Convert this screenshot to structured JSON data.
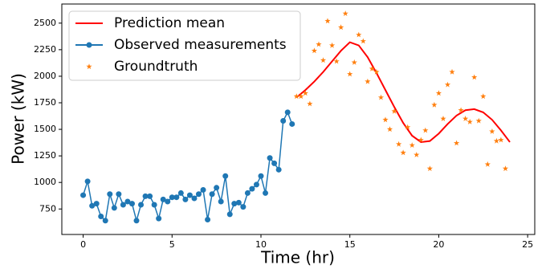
{
  "chart_data": {
    "type": "line",
    "xlabel": "Time (hr)",
    "ylabel": "Power (kW)",
    "xlim": [
      -1.2,
      25.4
    ],
    "ylim": [
      510,
      2680
    ],
    "xticks": [
      0,
      5,
      10,
      15,
      20,
      25
    ],
    "yticks": [
      750,
      1000,
      1250,
      1500,
      1750,
      2000,
      2250,
      2500
    ],
    "legend": "upper left",
    "series": [
      {
        "name": "Prediction mean",
        "color": "#ff0000",
        "style": "line",
        "x": [
          12,
          12.5,
          13,
          13.5,
          14,
          14.5,
          15,
          15.5,
          16,
          16.5,
          17,
          17.5,
          18,
          18.5,
          19,
          19.5,
          20,
          20.5,
          21,
          21.5,
          22,
          22.5,
          23,
          23.5,
          24
        ],
        "values": [
          1800,
          1870,
          1950,
          2040,
          2140,
          2240,
          2320,
          2290,
          2180,
          2030,
          1870,
          1710,
          1560,
          1440,
          1380,
          1390,
          1460,
          1550,
          1630,
          1680,
          1690,
          1660,
          1590,
          1490,
          1380
        ]
      },
      {
        "name": "Observed measurements",
        "color": "#1f77b4",
        "style": "line-marker",
        "x": [
          0,
          0.25,
          0.5,
          0.75,
          1,
          1.25,
          1.5,
          1.75,
          2,
          2.25,
          2.5,
          2.75,
          3,
          3.25,
          3.5,
          3.75,
          4,
          4.25,
          4.5,
          4.75,
          5,
          5.25,
          5.5,
          5.75,
          6,
          6.25,
          6.5,
          6.75,
          7,
          7.25,
          7.5,
          7.75,
          8,
          8.25,
          8.5,
          8.75,
          9,
          9.25,
          9.5,
          9.75,
          10,
          10.25,
          10.5,
          10.75,
          11,
          11.25,
          11.5,
          11.75
        ],
        "values": [
          880,
          1010,
          780,
          800,
          680,
          640,
          890,
          760,
          890,
          790,
          820,
          800,
          640,
          790,
          870,
          870,
          790,
          660,
          840,
          820,
          860,
          860,
          900,
          840,
          880,
          850,
          890,
          930,
          650,
          890,
          950,
          820,
          1060,
          700,
          800,
          810,
          770,
          900,
          940,
          980,
          1060,
          900,
          1230,
          1180,
          1120,
          1580,
          1660,
          1550
        ]
      },
      {
        "name": "Groundtruth",
        "color": "#ff7f0e",
        "style": "star",
        "x": [
          12,
          12.25,
          12.5,
          12.75,
          13,
          13.25,
          13.5,
          13.75,
          14,
          14.25,
          14.5,
          14.75,
          15,
          15.25,
          15.5,
          15.75,
          16,
          16.25,
          16.5,
          16.75,
          17,
          17.25,
          17.5,
          17.75,
          18,
          18.25,
          18.5,
          18.75,
          19,
          19.25,
          19.5,
          19.75,
          20,
          20.25,
          20.5,
          20.75,
          21,
          21.25,
          21.5,
          21.75,
          22,
          22.25,
          22.5,
          22.75,
          23,
          23.25,
          23.5,
          23.75
        ],
        "values": [
          1810,
          1810,
          1840,
          1740,
          2240,
          2300,
          2150,
          2520,
          2290,
          2140,
          2460,
          2590,
          2020,
          2130,
          2390,
          2330,
          1950,
          2070,
          2040,
          1800,
          1590,
          1500,
          1670,
          1360,
          1280,
          1520,
          1350,
          1260,
          1400,
          1490,
          1130,
          1730,
          1840,
          1600,
          1920,
          2040,
          1370,
          1680,
          1600,
          1570,
          1990,
          1580,
          1810,
          1170,
          1480,
          1390,
          1400,
          1130
        ]
      }
    ]
  }
}
